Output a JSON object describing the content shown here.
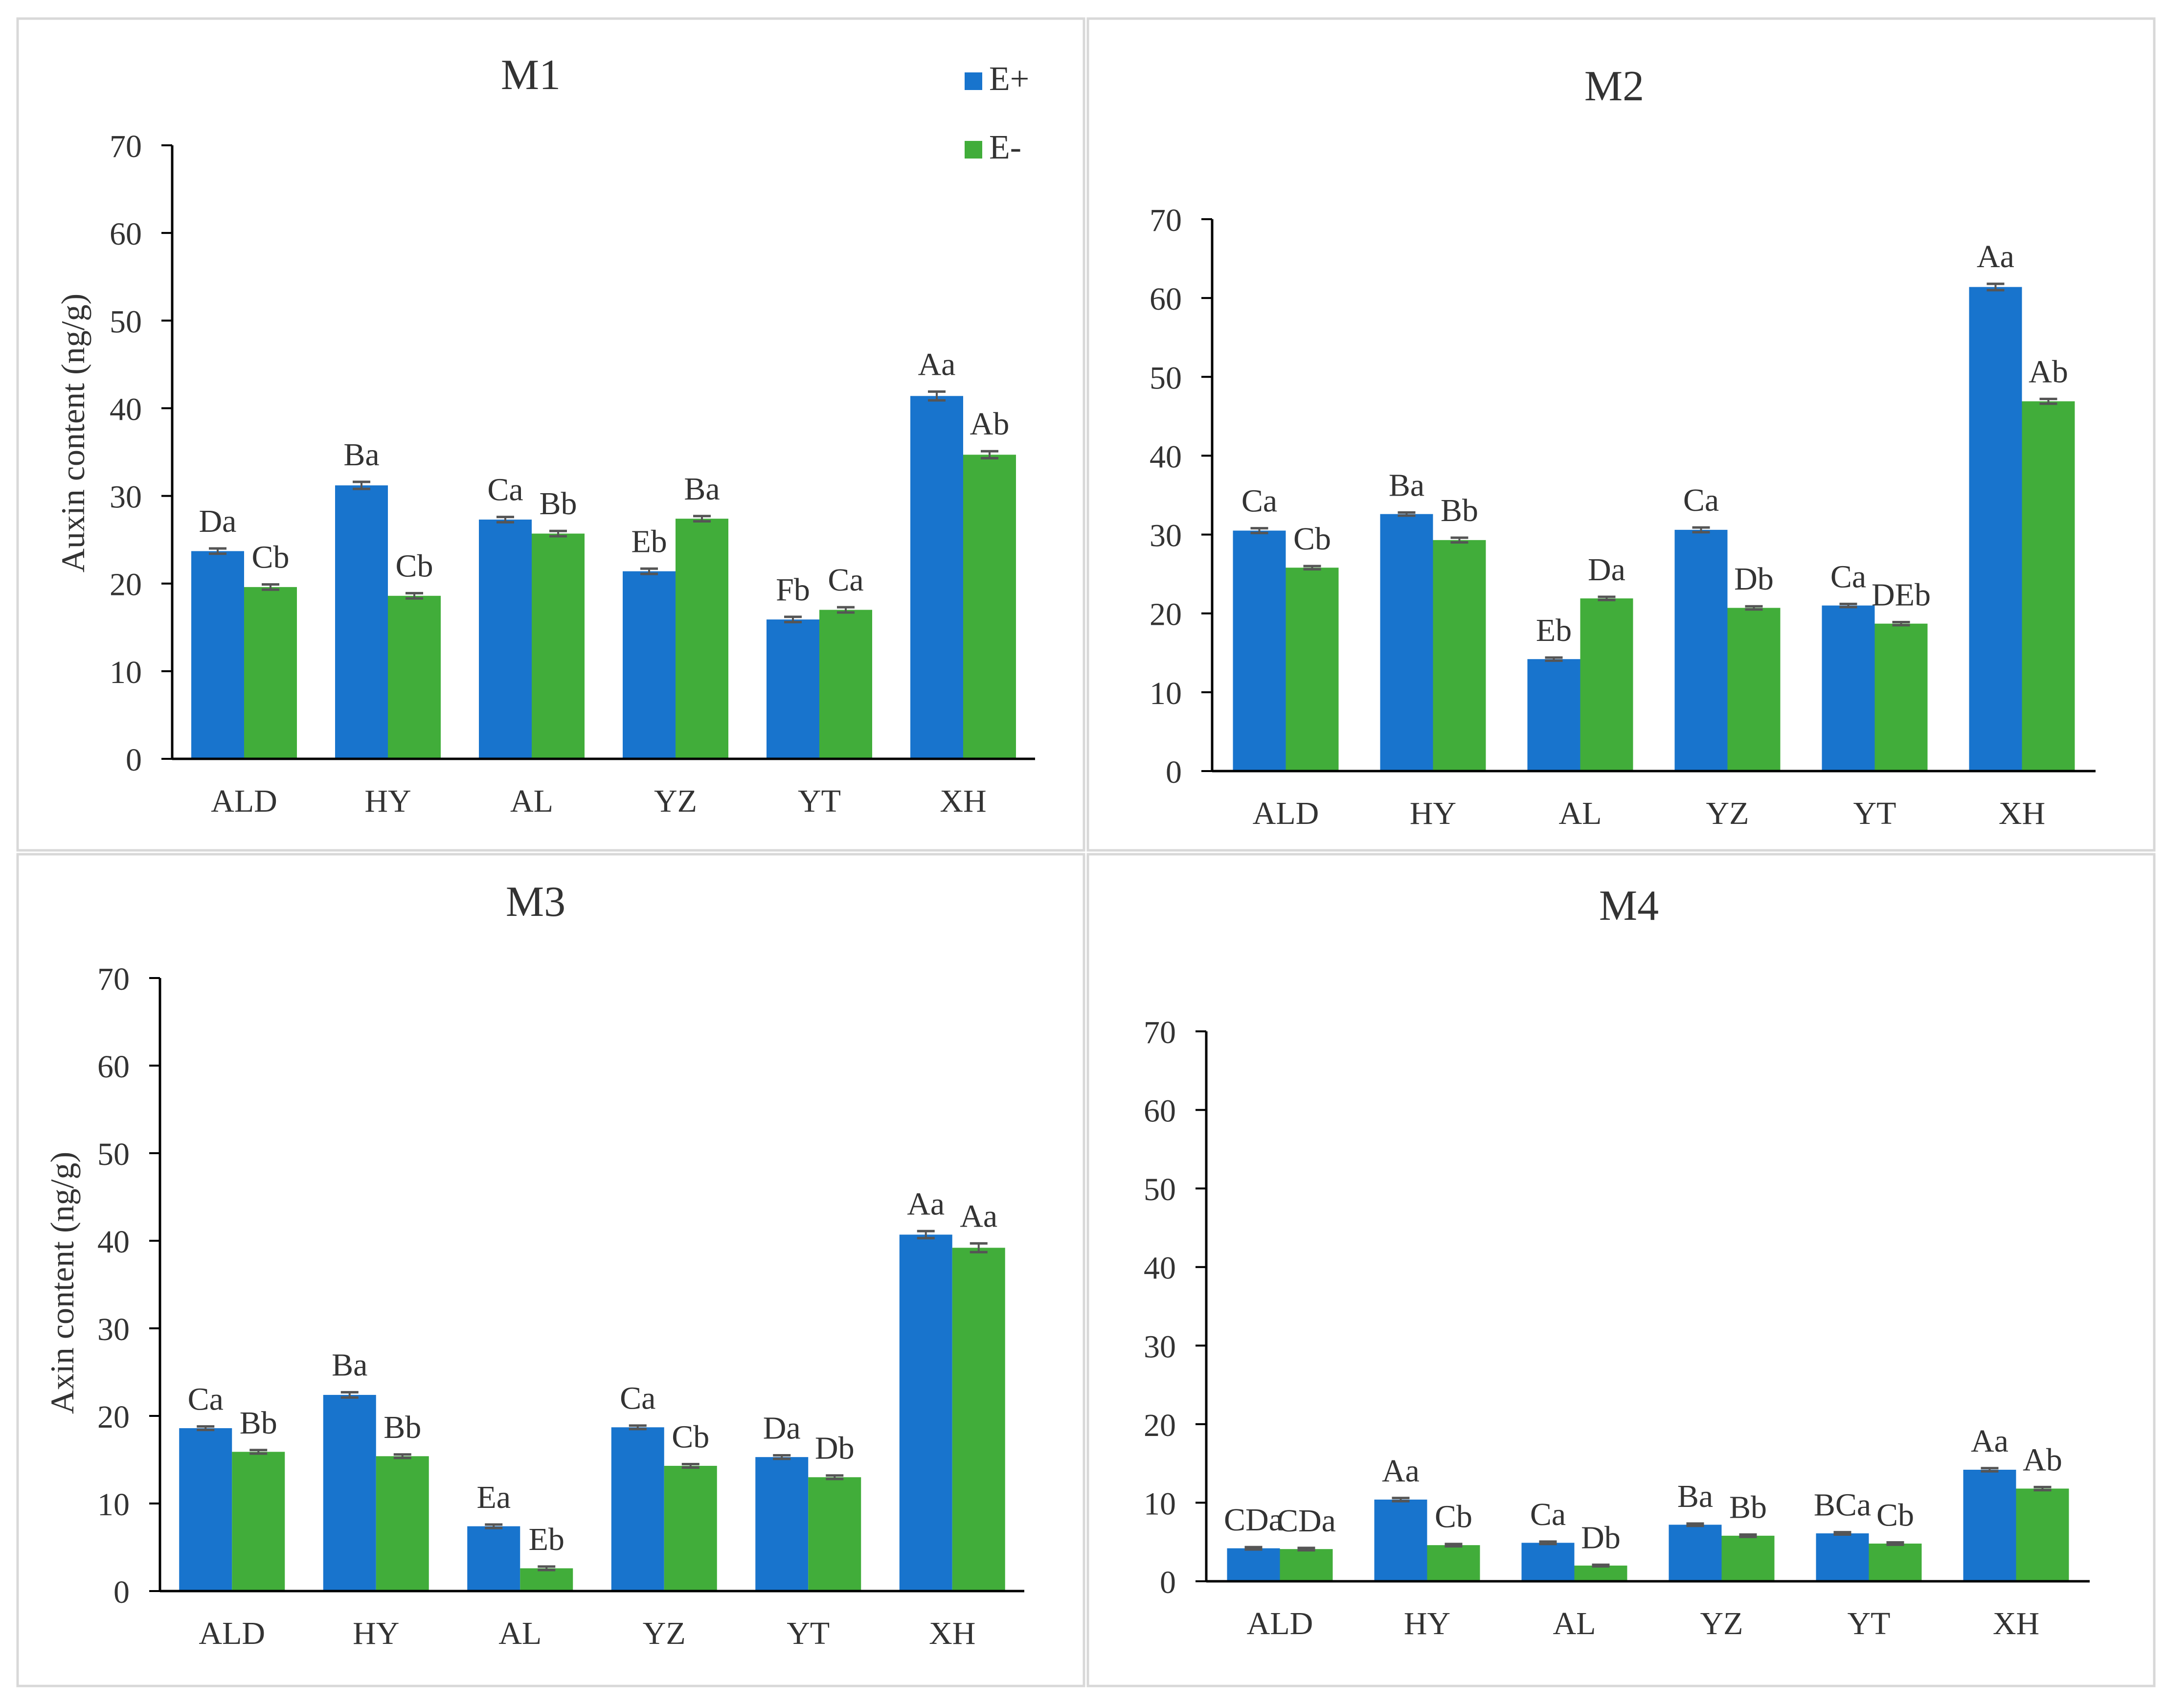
{
  "legend": {
    "items": [
      "E+",
      "E-"
    ]
  },
  "colors": {
    "e_plus": "#1874CD",
    "e_minus": "#41AD3A",
    "axis": "#000000",
    "text": "#333333",
    "panel_border": "#D8D8D8",
    "error_bar": "#555555"
  },
  "chart_data": [
    {
      "type": "bar",
      "title": "M1",
      "ylabel": "Auxin content (ng/g)",
      "ylim": [
        0,
        70
      ],
      "yticks": [
        "0",
        "10",
        "20",
        "30",
        "40",
        "50",
        "60",
        "70"
      ],
      "categories": [
        "ALD",
        "HY",
        "AL",
        "YZ",
        "YT",
        "XH"
      ],
      "series": [
        {
          "name": "E+",
          "values": [
            23.7,
            31.2,
            27.3,
            21.4,
            15.9,
            41.4
          ],
          "errors": [
            0.3,
            0.4,
            0.3,
            0.3,
            0.3,
            0.5
          ],
          "labels": [
            "Da",
            "Ba",
            "Ca",
            "Eb",
            "Fb",
            "Aa"
          ]
        },
        {
          "name": "E-",
          "values": [
            19.6,
            18.6,
            25.7,
            27.4,
            17.0,
            34.7
          ],
          "errors": [
            0.3,
            0.3,
            0.3,
            0.3,
            0.3,
            0.4
          ],
          "labels": [
            "Cb",
            "Cb",
            "Bb",
            "Ba",
            "Ca",
            "Ab"
          ]
        }
      ]
    },
    {
      "type": "bar",
      "title": "M2",
      "ylabel": "",
      "ylim": [
        0,
        70
      ],
      "yticks": [
        "0",
        "10",
        "20",
        "30",
        "40",
        "50",
        "60",
        "70"
      ],
      "categories": [
        "ALD",
        "HY",
        "AL",
        "YZ",
        "YT",
        "XH"
      ],
      "series": [
        {
          "name": "E+",
          "values": [
            30.5,
            32.6,
            14.2,
            30.6,
            21.0,
            61.4
          ],
          "errors": [
            0.3,
            0.2,
            0.2,
            0.3,
            0.2,
            0.4
          ],
          "labels": [
            "Ca",
            "Ba",
            "Eb",
            "Ca",
            "Ca",
            "Aa"
          ]
        },
        {
          "name": "E-",
          "values": [
            25.8,
            29.3,
            21.9,
            20.7,
            18.7,
            46.9
          ],
          "errors": [
            0.2,
            0.3,
            0.2,
            0.2,
            0.2,
            0.3
          ],
          "labels": [
            "Cb",
            "Bb",
            "Da",
            "Db",
            "DEb",
            "Ab"
          ]
        }
      ]
    },
    {
      "type": "bar",
      "title": "M3",
      "ylabel": "Axin content (ng/g)",
      "ylim": [
        0,
        70
      ],
      "yticks": [
        "0",
        "10",
        "20",
        "30",
        "40",
        "50",
        "60",
        "70"
      ],
      "categories": [
        "ALD",
        "HY",
        "AL",
        "YZ",
        "YT",
        "XH"
      ],
      "series": [
        {
          "name": "E+",
          "values": [
            18.6,
            22.4,
            7.4,
            18.7,
            15.3,
            40.7
          ],
          "errors": [
            0.2,
            0.3,
            0.2,
            0.2,
            0.2,
            0.4
          ],
          "labels": [
            "Ca",
            "Ba",
            "Ea",
            "Ca",
            "Da",
            "Aa"
          ]
        },
        {
          "name": "E-",
          "values": [
            15.9,
            15.4,
            2.6,
            14.3,
            13.0,
            39.2
          ],
          "errors": [
            0.2,
            0.2,
            0.2,
            0.2,
            0.2,
            0.5
          ],
          "labels": [
            "Bb",
            "Bb",
            "Eb",
            "Cb",
            "Db",
            "Aa"
          ]
        }
      ]
    },
    {
      "type": "bar",
      "title": "M4",
      "ylabel": "",
      "ylim": [
        0,
        70
      ],
      "yticks": [
        "0",
        "10",
        "20",
        "30",
        "40",
        "50",
        "60",
        "70"
      ],
      "categories": [
        "ALD",
        "HY",
        "AL",
        "YZ",
        "YT",
        "XH"
      ],
      "series": [
        {
          "name": "E+",
          "values": [
            4.2,
            10.4,
            4.9,
            7.2,
            6.1,
            14.2
          ],
          "errors": [
            0.15,
            0.2,
            0.15,
            0.15,
            0.15,
            0.2
          ],
          "labels": [
            "CDa",
            "Aa",
            "Ca",
            "Ba",
            "BCa",
            "Aa"
          ]
        },
        {
          "name": "E-",
          "values": [
            4.1,
            4.6,
            2.0,
            5.8,
            4.8,
            11.8
          ],
          "errors": [
            0.15,
            0.15,
            0.1,
            0.15,
            0.15,
            0.2
          ],
          "labels": [
            "CDa",
            "Cb",
            "Db",
            "Bb",
            "Cb",
            "Ab"
          ]
        }
      ]
    }
  ]
}
